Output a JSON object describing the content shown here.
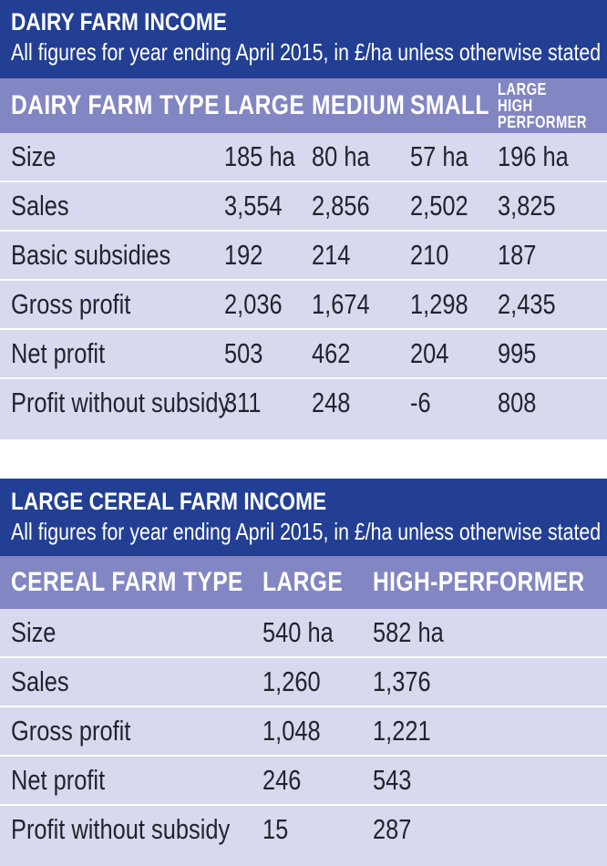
{
  "dairy": {
    "title": "DAIRY FARM INCOME",
    "subtitle": "All figures for year ending April 2015, in £/ha unless otherwise stated",
    "headers": [
      "DAIRY FARM TYPE",
      "LARGE",
      "MEDIUM",
      "SMALL",
      "LARGE HIGH PERFORMER"
    ],
    "rows": [
      [
        "Size",
        "185 ha",
        "80 ha",
        "57 ha",
        "196 ha"
      ],
      [
        "Sales",
        "3,554",
        "2,856",
        "2,502",
        "3,825"
      ],
      [
        "Basic subsidies",
        "192",
        "214",
        "210",
        "187"
      ],
      [
        "Gross profit",
        "2,036",
        "1,674",
        "1,298",
        "2,435"
      ],
      [
        "Net profit",
        "503",
        "462",
        "204",
        "995"
      ],
      [
        "Profit without subsidy",
        "311",
        "248",
        "-6",
        "808"
      ]
    ]
  },
  "cereal": {
    "title": "LARGE CEREAL FARM INCOME",
    "subtitle": "All figures for year ending April 2015, in £/ha unless otherwise stated",
    "headers": [
      "CEREAL FARM TYPE",
      "LARGE",
      "HIGH-PERFORMER"
    ],
    "rows": [
      [
        "Size",
        "540 ha",
        "582 ha"
      ],
      [
        "Sales",
        "1,260",
        "1,376"
      ],
      [
        "Gross profit",
        "1,048",
        "1,221"
      ],
      [
        "Net profit",
        "246",
        "543"
      ],
      [
        "Profit without subsidy",
        "15",
        "287"
      ]
    ]
  },
  "colors": {
    "header_bg": "#223f94",
    "column_header_bg": "#8286c2",
    "row_bg": "#d8d9ee",
    "row_divider": "#ffffff"
  }
}
